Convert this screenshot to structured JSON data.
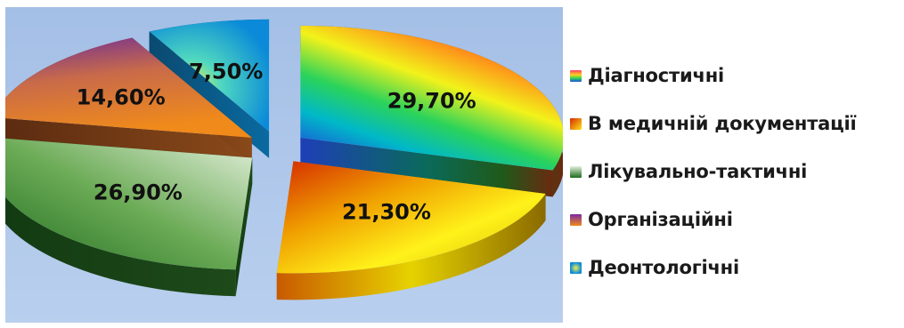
{
  "chart_data": {
    "type": "pie",
    "title": "",
    "slices": [
      {
        "name": "Діагностичні",
        "value": 29.7,
        "label": "29,70%",
        "color": "#ff4a5a"
      },
      {
        "name": "В медичній документації",
        "value": 21.3,
        "label": "21,30%",
        "color": "#e8c400"
      },
      {
        "name": "Лікувально-тактичні",
        "value": 26.9,
        "label": "26,90%",
        "color": "#4f9a3c"
      },
      {
        "name": "Організаційні",
        "value": 14.6,
        "label": "14,60%",
        "color": "#d26a3a"
      },
      {
        "name": "Деонтологічні",
        "value": 7.5,
        "label": "7,50%",
        "color": "#0aa6e0"
      }
    ],
    "legend_position": "right",
    "background": "#a9c4e8"
  }
}
